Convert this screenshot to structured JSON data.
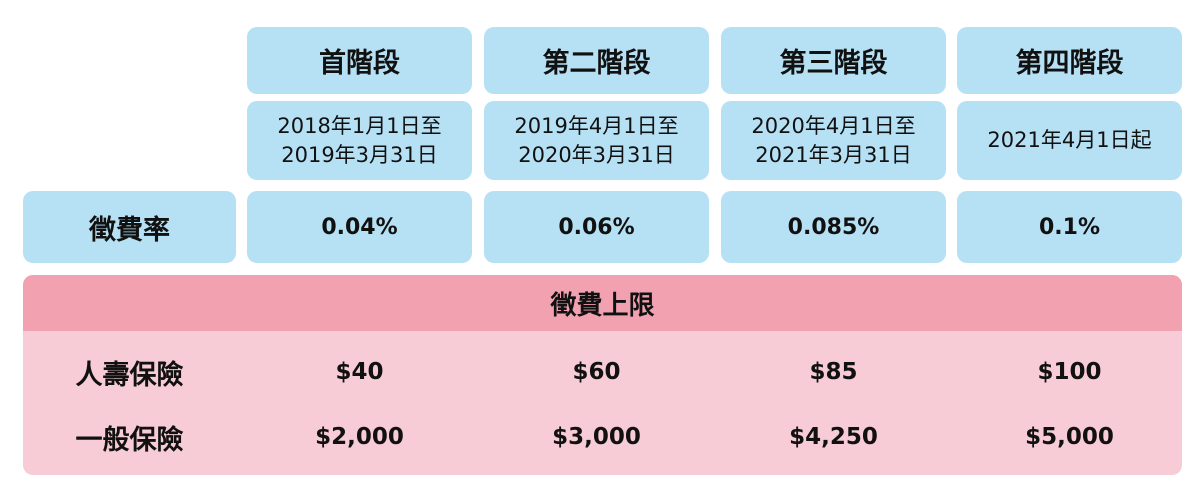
{
  "table": {
    "stages": [
      {
        "name": "首階段",
        "period": [
          "2018年1月1日至",
          "2019年3月31日"
        ]
      },
      {
        "name": "第二階段",
        "period": [
          "2019年4月1日至",
          "2020年3月31日"
        ]
      },
      {
        "name": "第三階段",
        "period": [
          "2020年4月1日至",
          "2021年3月31日"
        ]
      },
      {
        "name": "第四階段",
        "period": [
          "2021年4月1日起"
        ]
      }
    ],
    "rate_label": "徵費率",
    "rates": [
      "0.04%",
      "0.06%",
      "0.085%",
      "0.1%"
    ],
    "cap_title": "徵費上限",
    "rows": [
      {
        "label": "人壽保險",
        "values": [
          "$40",
          "$60",
          "$85",
          "$100"
        ]
      },
      {
        "label": "一般保險",
        "values": [
          "$2,000",
          "$3,000",
          "$4,250",
          "$5,000"
        ]
      }
    ]
  }
}
